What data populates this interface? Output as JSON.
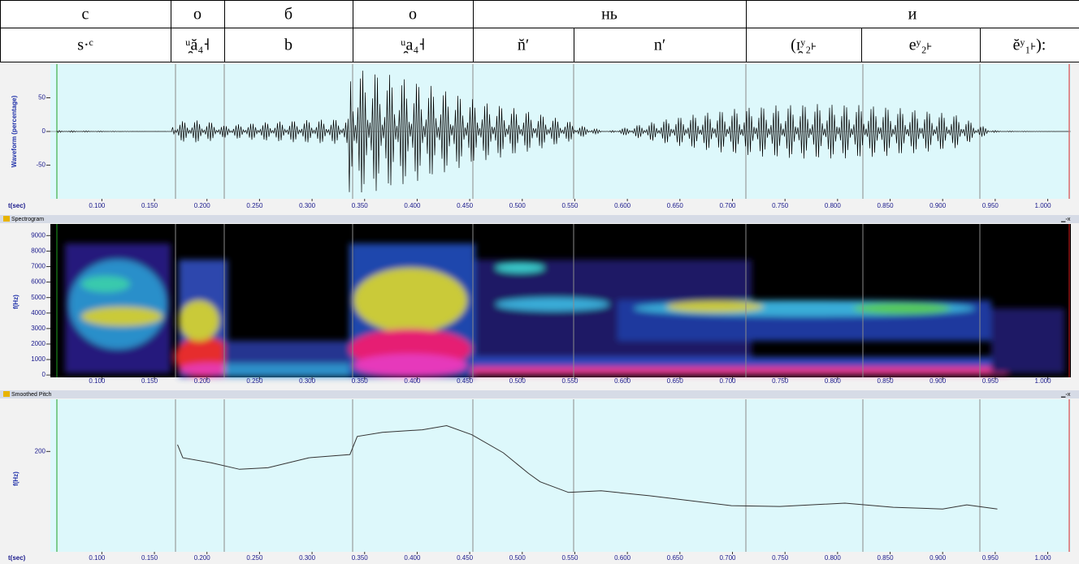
{
  "table": {
    "rows": [
      [
        "с",
        "о",
        "б",
        "о",
        "нь",
        "и"
      ],
      [
        "s·ᶜ",
        "ᵘ̯ă₄˧",
        "b",
        "ᵘ̯a₄˧",
        "n̆′",
        "n′",
        "(ɪ̯ʸ₂˫",
        "eʸ₂˫",
        "ĕʸ₁˫):"
      ]
    ]
  },
  "time_axis": {
    "label": "t(sec)",
    "xlim": [
      0.051,
      1.022
    ],
    "ticks": [
      {
        "value": 0.1,
        "label": "0.100"
      },
      {
        "value": 0.15,
        "label": "0.150"
      },
      {
        "value": 0.2,
        "label": "0.200"
      },
      {
        "value": 0.25,
        "label": "0.250"
      },
      {
        "value": 0.3,
        "label": "0.300"
      },
      {
        "value": 0.35,
        "label": "0.350"
      },
      {
        "value": 0.4,
        "label": "0.400"
      },
      {
        "value": 0.45,
        "label": "0.450"
      },
      {
        "value": 0.5,
        "label": "0.500"
      },
      {
        "value": 0.55,
        "label": "0.550"
      },
      {
        "value": 0.6,
        "label": "0.600"
      },
      {
        "value": 0.65,
        "label": "0.650"
      },
      {
        "value": 0.7,
        "label": "0.700"
      },
      {
        "value": 0.75,
        "label": "0.750"
      },
      {
        "value": 0.8,
        "label": "0.800"
      },
      {
        "value": 0.85,
        "label": "0.850"
      },
      {
        "value": 0.9,
        "label": "0.900"
      },
      {
        "value": 0.95,
        "label": "0.950"
      },
      {
        "value": 1.0,
        "label": "1.000"
      }
    ]
  },
  "waveform": {
    "y_label": "Waveform (percentage)",
    "ylim": [
      -100,
      100
    ],
    "yticks": [
      50,
      0,
      -50
    ]
  },
  "spectrogram": {
    "title": "Spectrogram",
    "y_label": "f(Hz)",
    "ylim": [
      -150,
      9750
    ],
    "yticks": [
      9000,
      8000,
      7000,
      6000,
      5000,
      4000,
      3000,
      2000,
      1000,
      0
    ]
  },
  "pitch": {
    "title": "Smoothed Pitch",
    "y_label": "f(Hz)",
    "ylim": [
      100,
      252
    ],
    "yticks": [
      200
    ],
    "x": [
      0.172,
      0.177,
      0.204,
      0.231,
      0.258,
      0.297,
      0.336,
      0.343,
      0.367,
      0.405,
      0.428,
      0.452,
      0.482,
      0.506,
      0.517,
      0.544,
      0.575,
      0.621,
      0.699,
      0.745,
      0.807,
      0.853,
      0.9,
      0.923,
      0.952
    ],
    "values": [
      206.8,
      193.7,
      188.7,
      182.2,
      183.8,
      193.7,
      196.9,
      215.0,
      219.1,
      221.6,
      225.7,
      216.7,
      198.6,
      178.1,
      169.8,
      159.2,
      160.8,
      155.9,
      146.0,
      145.2,
      148.5,
      144.4,
      142.7,
      146.8,
      142.7
    ]
  }
}
